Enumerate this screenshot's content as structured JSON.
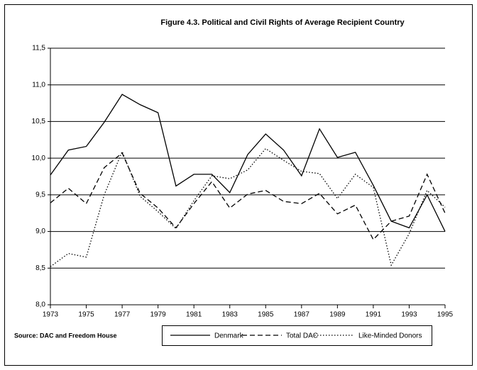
{
  "chart_data": {
    "type": "line",
    "title": "Figure 4.3.  Political and Civil Rights of Average Recipient Country",
    "source": "Source: DAC and Freedom House",
    "x": [
      1973,
      1974,
      1975,
      1976,
      1977,
      1978,
      1979,
      1980,
      1981,
      1982,
      1983,
      1984,
      1985,
      1986,
      1987,
      1988,
      1989,
      1990,
      1991,
      1992,
      1993,
      1994,
      1995
    ],
    "series": [
      {
        "name": "Denmark",
        "color": "#000000",
        "line_style": "solid",
        "values": [
          9.77,
          10.11,
          10.16,
          10.49,
          10.87,
          10.73,
          10.62,
          9.62,
          9.78,
          9.78,
          9.53,
          10.05,
          10.33,
          10.11,
          9.76,
          10.4,
          10.01,
          10.08,
          9.63,
          9.14,
          9.05,
          9.5,
          9.0
        ]
      },
      {
        "name": "Total DAC",
        "color": "#000000",
        "line_style": "dashed",
        "values": [
          9.39,
          9.59,
          9.38,
          9.87,
          10.07,
          9.52,
          9.32,
          9.05,
          9.38,
          9.68,
          9.32,
          9.51,
          9.56,
          9.41,
          9.38,
          9.52,
          9.24,
          9.36,
          8.89,
          9.14,
          9.21,
          9.78,
          9.25
        ]
      },
      {
        "name": "Like-Minded Donors",
        "color": "#000000",
        "line_style": "dotted",
        "values": [
          8.52,
          8.7,
          8.65,
          9.5,
          10.09,
          9.48,
          9.27,
          9.04,
          9.42,
          9.76,
          9.72,
          9.84,
          10.13,
          9.97,
          9.82,
          9.79,
          9.45,
          9.78,
          9.6,
          8.54,
          8.97,
          9.56,
          9.33
        ]
      }
    ],
    "xlim": [
      1973,
      1995
    ],
    "xticks": [
      1973,
      1975,
      1977,
      1979,
      1981,
      1983,
      1985,
      1987,
      1989,
      1991,
      1993,
      1995
    ],
    "ylim": [
      8.0,
      11.5
    ],
    "yticks": [
      {
        "value": 8.0,
        "label": "8,0"
      },
      {
        "value": 8.5,
        "label": "8,5"
      },
      {
        "value": 9.0,
        "label": "9,0"
      },
      {
        "value": 9.5,
        "label": "9,5"
      },
      {
        "value": 10.0,
        "label": "10,0"
      },
      {
        "value": 10.5,
        "label": "10,5"
      },
      {
        "value": 11.0,
        "label": "11,0"
      },
      {
        "value": 11.5,
        "label": "11,5"
      }
    ],
    "grid": true,
    "legend": "bottom"
  }
}
